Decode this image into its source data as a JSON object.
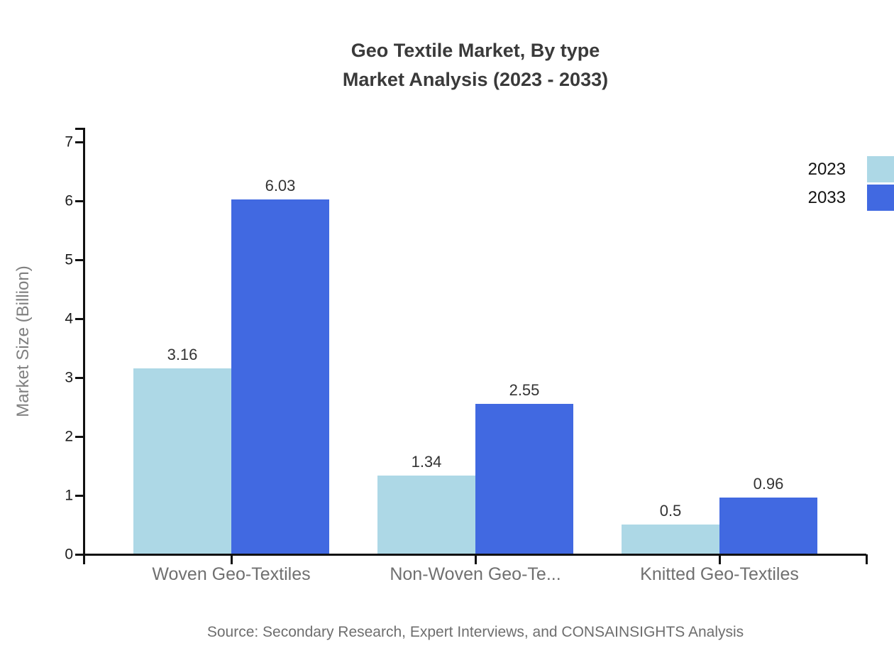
{
  "chart_data": {
    "type": "bar",
    "title": "Geo Textile Market, By type Market Analysis (2023 - 2033)",
    "title_line1": "Geo Textile Market, By type",
    "title_line2": "Market Analysis (2023 - 2033)",
    "categories": [
      "Woven Geo-Textiles",
      "Non-Woven Geo-Te...",
      "Knitted Geo-Textiles"
    ],
    "series": [
      {
        "name": "2023",
        "color": "#ADD8E6",
        "values": [
          3.16,
          1.34,
          0.5
        ]
      },
      {
        "name": "2033",
        "color": "#4169E1",
        "values": [
          6.03,
          2.55,
          0.96
        ]
      }
    ],
    "value_labels": [
      [
        "3.16",
        "1.34",
        "0.5"
      ],
      [
        "6.03",
        "2.55",
        "0.96"
      ]
    ],
    "xlabel": "",
    "ylabel": "Market Size (Billion)",
    "ylim": [
      0,
      7
    ],
    "yticks": [
      0,
      1,
      2,
      3,
      4,
      5,
      6,
      7
    ],
    "grid": false,
    "legend_position": "top-right",
    "source": "Source: Secondary Research, Expert Interviews, and CONSAINSIGHTS Analysis"
  },
  "colors": {
    "axis": "#111111",
    "bar_2023": "#ADD8E6",
    "bar_2033": "#4169E1",
    "title_text": "#3a3a3a",
    "axis_number_text": "#1c1c1c",
    "category_text": "#707070",
    "value_label_text": "#333333",
    "source_text": "#6e6e6e",
    "background": "#ffffff"
  }
}
